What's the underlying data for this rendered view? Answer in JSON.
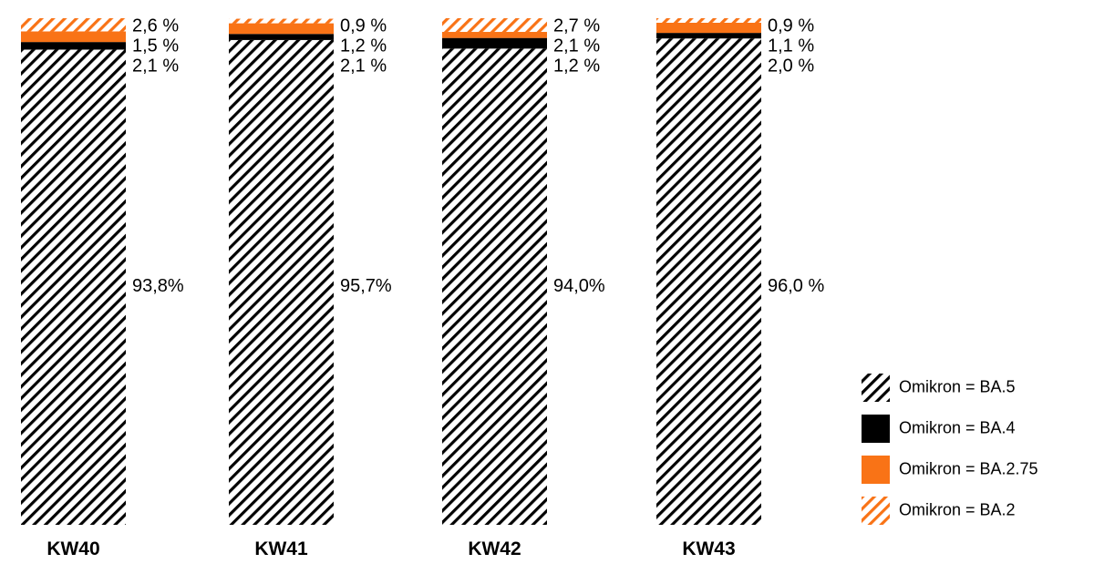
{
  "colors": {
    "ba5_stripe": "#000000",
    "ba4": "#000000",
    "ba275": "#f97316",
    "ba2_stripe": "#f97316",
    "background": "#ffffff"
  },
  "chart_data": {
    "type": "bar",
    "stacked": true,
    "normalized_to_100_percent": true,
    "categories": [
      "KW40",
      "KW41",
      "KW42",
      "KW43"
    ],
    "series": [
      {
        "name": "Omikron = BA.5",
        "pattern": "black-hatched",
        "values": [
          93.8,
          95.7,
          94.0,
          96.0
        ],
        "labels": [
          "93,8%",
          "95,7%",
          "94,0%",
          "96,0 %"
        ]
      },
      {
        "name": "Omikron = BA.4",
        "pattern": "solid-black",
        "values": [
          1.5,
          1.2,
          2.1,
          1.1
        ],
        "labels": [
          "1,5 %",
          "1,2 %",
          "2,1 %",
          "1,1 %"
        ]
      },
      {
        "name": "Omikron = BA.2.75",
        "pattern": "solid-orange",
        "values": [
          2.1,
          2.1,
          1.2,
          2.0
        ],
        "labels": [
          "2,1 %",
          "2,1 %",
          "1,2 %",
          "2,0 %"
        ]
      },
      {
        "name": "Omikron = BA.2",
        "pattern": "orange-hatched",
        "values": [
          2.6,
          0.9,
          2.7,
          0.9
        ],
        "labels": [
          "2,6 %",
          "0,9 %",
          "2,7 %",
          "0,9 %"
        ]
      }
    ],
    "grid": false,
    "axes_shown": false,
    "legend_position": "bottom-right"
  },
  "legend": [
    {
      "label": "Omikron = BA.5",
      "icon": "black-hatched-swatch"
    },
    {
      "label": "Omikron = BA.4",
      "icon": "solid-black-swatch"
    },
    {
      "label": "Omikron = BA.2.75",
      "icon": "solid-orange-swatch"
    },
    {
      "label": "Omikron = BA.2",
      "icon": "orange-hatched-swatch"
    }
  ]
}
